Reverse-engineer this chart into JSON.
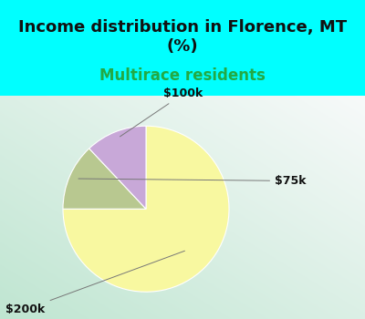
{
  "title": "Income distribution in Florence, MT\n(%)",
  "subtitle": "Multirace residents",
  "slices": [
    {
      "label": "$200k",
      "value": 75,
      "color": "#f8f8a0"
    },
    {
      "label": "$75k",
      "value": 13,
      "color": "#b8c890"
    },
    {
      "label": "$100k",
      "value": 12,
      "color": "#c8a8d8"
    }
  ],
  "title_fontsize": 13,
  "subtitle_fontsize": 12,
  "subtitle_color": "#22aa44",
  "title_color": "#111111",
  "background_cyan": "#00ffff",
  "label_color": "#111111",
  "label_fontsize": 9,
  "startangle": 90
}
